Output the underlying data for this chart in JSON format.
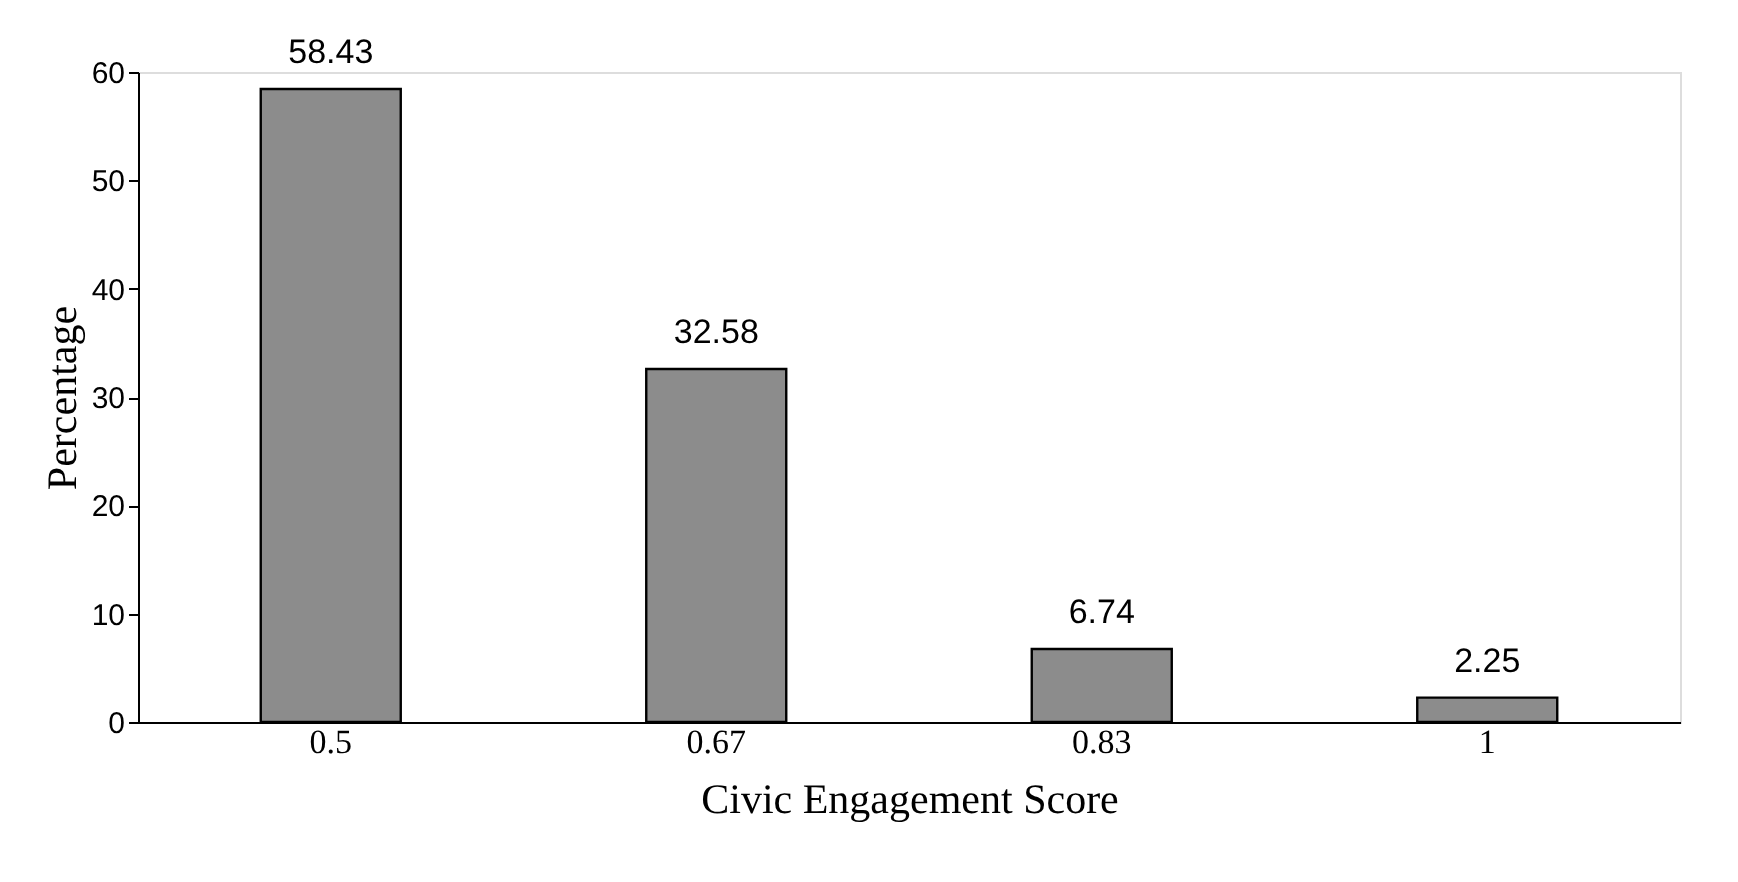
{
  "chart_data": {
    "type": "bar",
    "xlabel": "Civic Engagement Score",
    "ylabel": "Percentage",
    "categories": [
      "0.5",
      "0.67",
      "0.83",
      "1"
    ],
    "values": [
      58.43,
      32.58,
      6.74,
      2.25
    ],
    "color": "#8c8c8c",
    "ylim": [
      0,
      60
    ],
    "yticks": [
      0,
      10,
      20,
      30,
      40,
      50,
      60
    ],
    "grid": false,
    "data_labels": true
  }
}
